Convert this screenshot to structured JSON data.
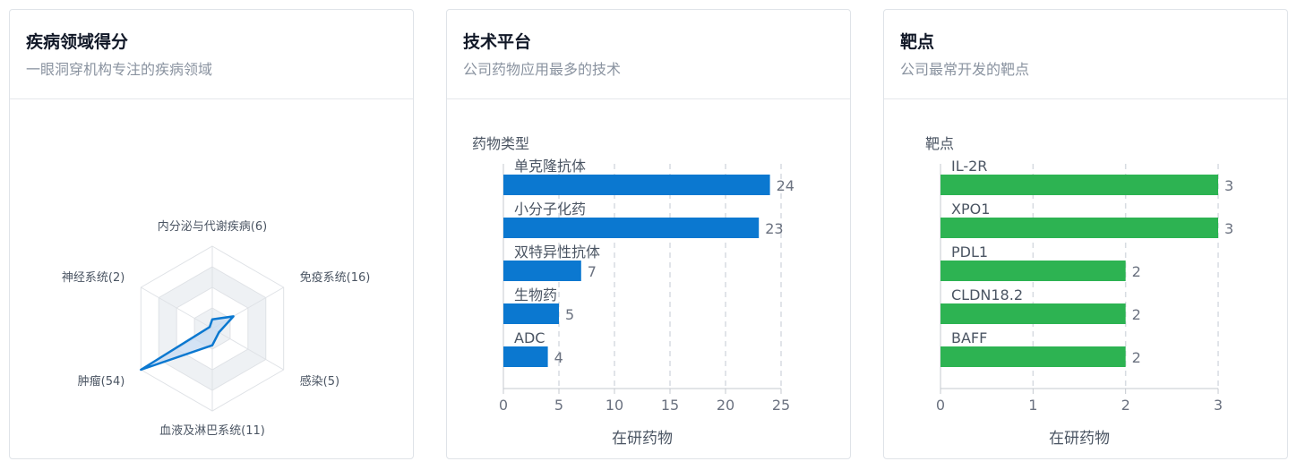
{
  "cards": {
    "disease": {
      "title": "疾病领域得分",
      "subtitle": "一眼洞穿机构专注的疾病领域"
    },
    "tech": {
      "title": "技术平台",
      "subtitle": "公司药物应用最多的技术"
    },
    "target": {
      "title": "靶点",
      "subtitle": "公司最常开发的靶点"
    }
  },
  "chart_data": [
    {
      "type": "radar",
      "axes": [
        "内分泌与代谢疾病(6)",
        "免疫系统(16)",
        "感染(5)",
        "血液及淋巴系统(11)",
        "肿瘤(54)",
        "神经系统(2)"
      ],
      "values": [
        6,
        16,
        5,
        11,
        54,
        2
      ],
      "max": 54,
      "levels": 4,
      "colors": {
        "line": "#0b78d0",
        "fill": "#c5d9f1",
        "grid": "#dfe2e6",
        "band": "#eef1f4"
      }
    },
    {
      "type": "bar",
      "orientation": "horizontal",
      "title": "药物类型",
      "categories": [
        "单克隆抗体",
        "小分子化药",
        "双特异性抗体",
        "生物药",
        "ADC"
      ],
      "values": [
        24,
        23,
        7,
        5,
        4
      ],
      "xlabel": "在研药物",
      "xlim": [
        0,
        25
      ],
      "xticks": [
        0,
        5,
        10,
        15,
        20,
        25
      ],
      "color": "#0b78d0"
    },
    {
      "type": "bar",
      "orientation": "horizontal",
      "title": "靶点",
      "categories": [
        "IL-2R",
        "XPO1",
        "PDL1",
        "CLDN18.2",
        "BAFF"
      ],
      "values": [
        3,
        3,
        2,
        2,
        2
      ],
      "xlabel": "在研药物",
      "xlim": [
        0,
        3
      ],
      "xticks": [
        0,
        1,
        2,
        3
      ],
      "color": "#2db352"
    }
  ]
}
